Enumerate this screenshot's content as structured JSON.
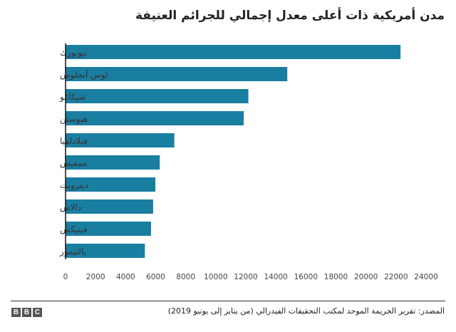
{
  "chart_data": {
    "type": "bar",
    "orientation": "horizontal",
    "title": "مدن أمريكية ذات أعلى معدل إجمالي للجرائم العنيفة",
    "categories": [
      "نيويورك",
      "لوس أنجلوس",
      "شيكاغو",
      "هيوستن",
      "فيلادلفيا",
      "ممفيس",
      "ديترويت",
      "دالاس",
      "فينيكس",
      "بالتيمور"
    ],
    "values": [
      22300,
      14760,
      12170,
      11860,
      7240,
      6270,
      5980,
      5830,
      5690,
      5280
    ],
    "xlim": [
      0,
      24000
    ],
    "xticks": [
      "0",
      "2000",
      "4000",
      "6000",
      "8000",
      "10000",
      "12000",
      "14000",
      "16000",
      "18000",
      "20000",
      "22000",
      "24000"
    ],
    "color": "#1a7ea1",
    "grid": false
  },
  "footer": {
    "source": "المصدر: تقرير الجريمة الموحد لمكتب التحقيقات الفيدرالي (من يناير إلى يونيو 2019)",
    "logo": [
      "B",
      "B",
      "C"
    ]
  }
}
